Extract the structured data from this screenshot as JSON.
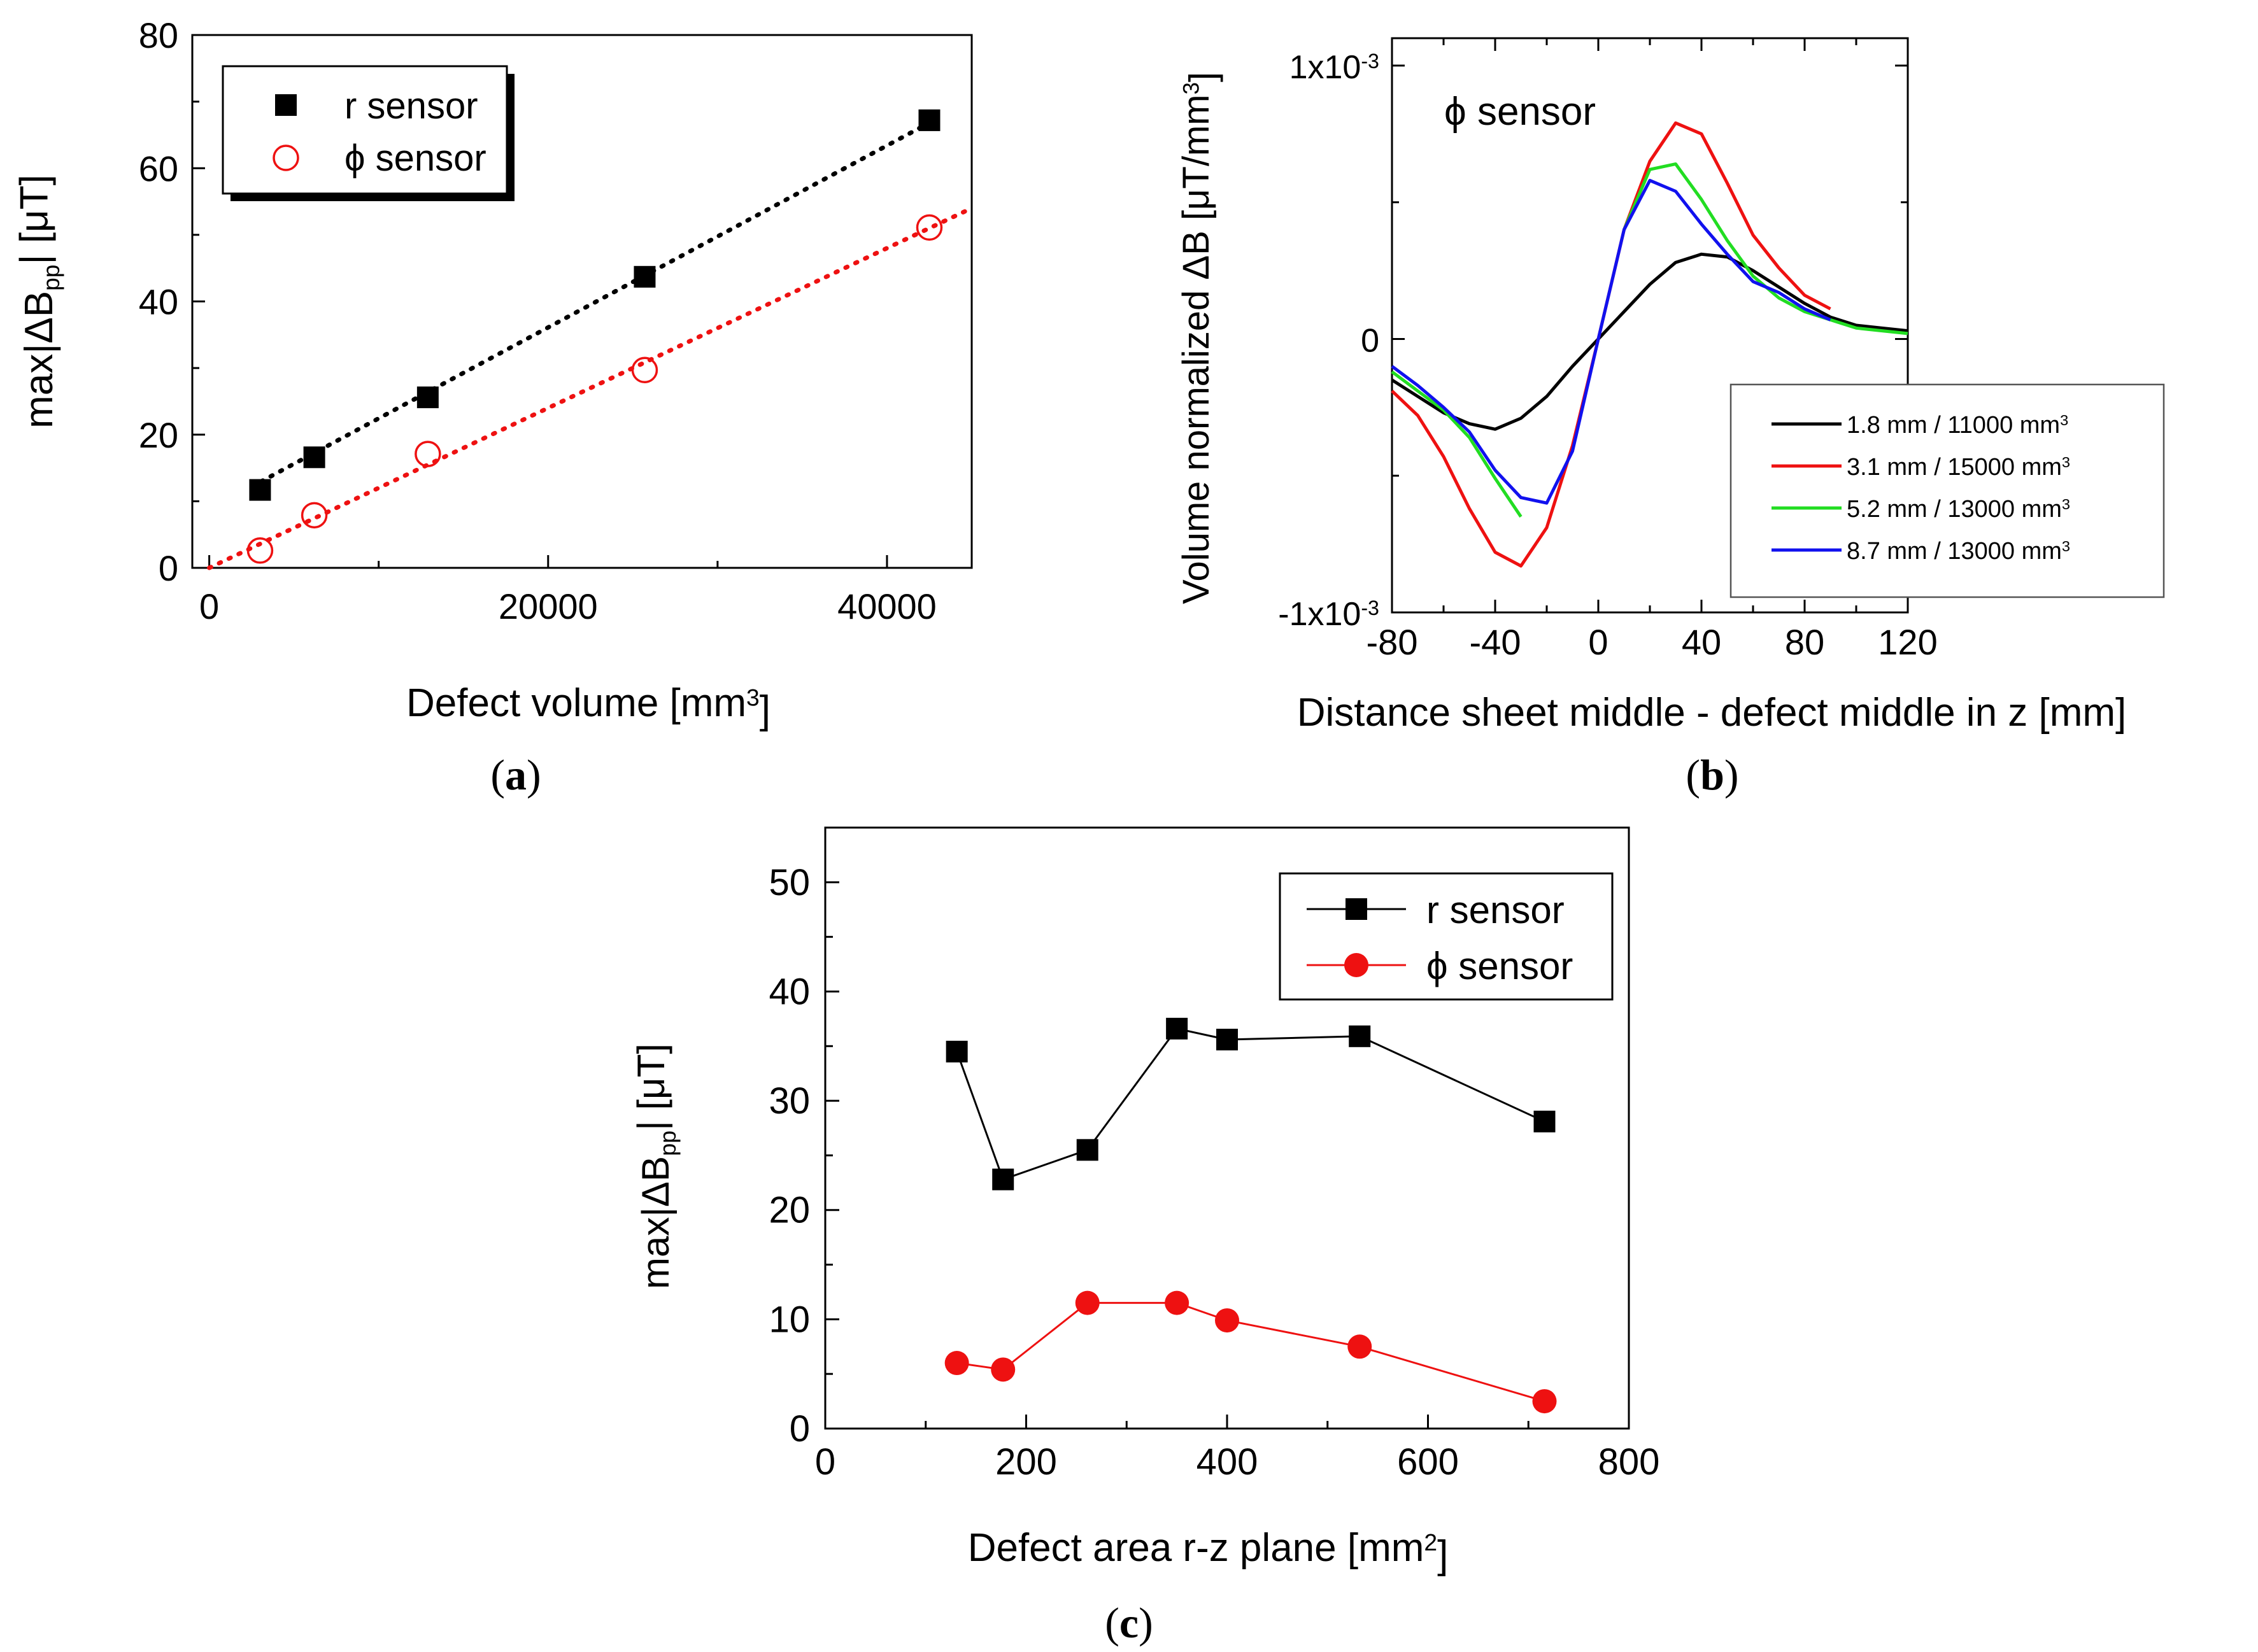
{
  "panels": {
    "a": {
      "prefix": "(",
      "letter": "a",
      "suffix": ")"
    },
    "b": {
      "prefix": "(",
      "letter": "b",
      "suffix": ")"
    },
    "c": {
      "prefix": "(",
      "letter": "c",
      "suffix": ")"
    }
  },
  "colors": {
    "black": "#000000",
    "red": "#ee1111",
    "green": "#22dd22",
    "blue": "#1111ee"
  },
  "chart_data": [
    {
      "id": "a",
      "type": "scatter",
      "title": "",
      "xlabel": {
        "main": "Defect volume [mm",
        "sup": "3",
        "end": "]"
      },
      "ylabel": {
        "main": "max|ΔB",
        "sub": "pp",
        "end": "| [μT]"
      },
      "xlim": [
        -1000,
        45000
      ],
      "ylim": [
        0,
        80
      ],
      "xticks": [
        0,
        20000,
        40000
      ],
      "yticks": [
        0,
        20,
        40,
        60,
        80
      ],
      "legend_position": "top-left",
      "series": [
        {
          "name": "r sensor",
          "marker": "filled-square",
          "color": "#000000",
          "x": [
            3000,
            6200,
            12900,
            25700,
            42500
          ],
          "y": [
            11.7,
            16.6,
            25.6,
            43.7,
            67.2
          ],
          "fit": {
            "x": [
              2500,
              43000
            ],
            "y": [
              12.2,
              67.5
            ]
          }
        },
        {
          "name": "ϕ sensor",
          "marker": "open-circle",
          "color": "#ee1111",
          "x": [
            3000,
            6200,
            12900,
            25700,
            42500
          ],
          "y": [
            2.6,
            7.9,
            17.1,
            29.7,
            51.1
          ],
          "fit": {
            "x": [
              0,
              45000
            ],
            "y": [
              0,
              54
            ]
          }
        }
      ]
    },
    {
      "id": "b",
      "type": "line",
      "title": "",
      "annotation": "ϕ sensor",
      "xlabel": "Distance sheet middle - defect middle in z [mm]",
      "ylabel": {
        "main": "Volume normalized ΔB [μT/mm",
        "sup": "3",
        "end": "]"
      },
      "xlim": [
        -80,
        120
      ],
      "ylim": [
        -0.001,
        0.0011
      ],
      "xticks": [
        -80,
        -40,
        0,
        40,
        80,
        120
      ],
      "yticks": [
        {
          "value": -0.001,
          "mant": "-1x10",
          "exp": "-3"
        },
        {
          "value": 0,
          "mant": "0",
          "exp": ""
        },
        {
          "value": 0.001,
          "mant": "1x10",
          "exp": "-3"
        }
      ],
      "legend_position": "bottom-right",
      "series": [
        {
          "name": "1.8 mm / 11000 mm",
          "sup": "3",
          "color": "#000000",
          "x": [
            -80,
            -70,
            -60,
            -50,
            -40,
            -30,
            -20,
            -10,
            0,
            10,
            20,
            30,
            40,
            50,
            60,
            70,
            80,
            90,
            100,
            110,
            120
          ],
          "y": [
            -0.00015,
            -0.00021,
            -0.00027,
            -0.00031,
            -0.00033,
            -0.00029,
            -0.00021,
            -0.0001,
            0.0,
            0.0001,
            0.0002,
            0.00028,
            0.00031,
            0.0003,
            0.00025,
            0.00019,
            0.00013,
            8e-05,
            5e-05,
            4e-05,
            3e-05
          ]
        },
        {
          "name": "3.1 mm / 15000 mm",
          "sup": "3",
          "color": "#ee1111",
          "x": [
            -80,
            -70,
            -60,
            -50,
            -40,
            -30,
            -20,
            -10,
            0,
            10,
            20,
            30,
            40,
            50,
            60,
            70,
            80,
            90
          ],
          "y": [
            -0.00019,
            -0.00028,
            -0.00043,
            -0.00062,
            -0.00078,
            -0.00083,
            -0.00069,
            -0.00039,
            0.0,
            0.0004,
            0.00065,
            0.00079,
            0.00075,
            0.00057,
            0.00038,
            0.00026,
            0.00016,
            0.00011
          ]
        },
        {
          "name": "5.2 mm / 13000 mm",
          "sup": "3",
          "color": "#22dd22",
          "x": [
            -80,
            -70,
            -60,
            -50,
            -40,
            -30
          ],
          "y": [
            -0.00012,
            -0.00019,
            -0.00026,
            -0.00036,
            -0.00051,
            -0.00065
          ],
          "x2": [
            10,
            20,
            30,
            40,
            50,
            60,
            70,
            80,
            90,
            100,
            110,
            120
          ],
          "y2": [
            0.0004,
            0.00062,
            0.00064,
            0.00051,
            0.00036,
            0.00023,
            0.00015,
            0.0001,
            7e-05,
            4e-05,
            3e-05,
            2e-05
          ]
        },
        {
          "name": "8.7 mm / 13000 mm",
          "sup": "3",
          "color": "#1111ee",
          "x": [
            -80,
            -70,
            -60,
            -50,
            -40,
            -30,
            -20,
            -10,
            0,
            10,
            20,
            30,
            40,
            50,
            60,
            70,
            80,
            90
          ],
          "y": [
            -0.0001,
            -0.00017,
            -0.00025,
            -0.00034,
            -0.00048,
            -0.00058,
            -0.0006,
            -0.00041,
            0.0,
            0.0004,
            0.00058,
            0.00054,
            0.00042,
            0.00031,
            0.00021,
            0.00017,
            0.00011,
            7e-05
          ]
        }
      ]
    },
    {
      "id": "c",
      "type": "line",
      "title": "",
      "xlabel": {
        "main": "Defect area r-z plane [mm",
        "sup": "2",
        "end": "]"
      },
      "ylabel": {
        "main": "max|ΔB",
        "sub": "pp",
        "end": "|  [μT]"
      },
      "xlim": [
        0,
        800
      ],
      "ylim": [
        0,
        55
      ],
      "xticks": [
        0,
        200,
        400,
        600,
        800
      ],
      "yticks": [
        0,
        10,
        20,
        30,
        40,
        50
      ],
      "legend_position": "top-right",
      "series": [
        {
          "name": "r sensor",
          "marker": "filled-square",
          "color": "#000000",
          "x": [
            131,
            177,
            261,
            350,
            400,
            532,
            716
          ],
          "y": [
            34.5,
            22.8,
            25.5,
            36.6,
            35.6,
            35.9,
            28.1
          ]
        },
        {
          "name": "ϕ sensor",
          "marker": "filled-circle",
          "color": "#ee1111",
          "x": [
            131,
            177,
            261,
            350,
            400,
            532,
            716
          ],
          "y": [
            6.0,
            5.4,
            11.5,
            11.5,
            9.9,
            7.5,
            2.5
          ]
        }
      ]
    }
  ]
}
